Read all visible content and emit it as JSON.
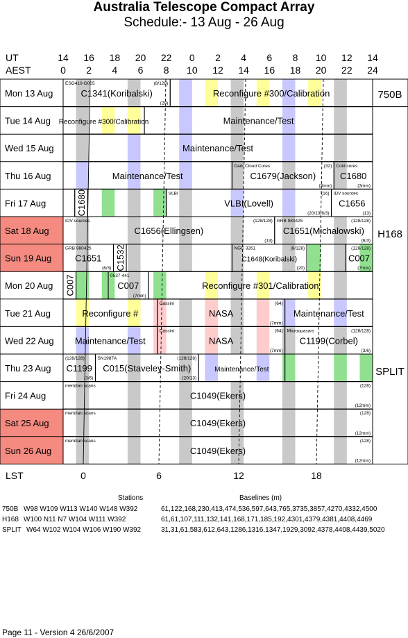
{
  "title": "Australia Telescope Compact Array",
  "subtitle": "Schedule:- 13 Aug - 26 Aug",
  "header": {
    "ut_label": "UT",
    "aest_label": "AEST",
    "ut_hours": [
      "14",
      "16",
      "18",
      "20",
      "22",
      "0",
      "2",
      "4",
      "6",
      "8",
      "10",
      "12",
      "14"
    ],
    "aest_hours": [
      "0",
      "2",
      "4",
      "6",
      "8",
      "10",
      "12",
      "14",
      "16",
      "18",
      "20",
      "22",
      "24"
    ]
  },
  "lst": {
    "label": "LST",
    "ticks": [
      "0",
      "6",
      "12",
      "18"
    ]
  },
  "colors": {
    "weekend_red": "#f48a80",
    "grey": "#c9c9c9",
    "blue": "#c8c8ff",
    "yellow": "#ffff99",
    "green": "#90e090",
    "pink": "#ffcccc"
  },
  "days": [
    {
      "label": "Mon  13 Aug",
      "weekend": false
    },
    {
      "label": "Tue  14 Aug",
      "weekend": false
    },
    {
      "label": "Wed  15 Aug",
      "weekend": false
    },
    {
      "label": "Thu  16 Aug",
      "weekend": false
    },
    {
      "label": "Fri  17 Aug",
      "weekend": false
    },
    {
      "label": "Sat  18 Aug",
      "weekend": true
    },
    {
      "label": "Sun  19 Aug",
      "weekend": true
    },
    {
      "label": "Mon  20 Aug",
      "weekend": false
    },
    {
      "label": "Tue  21 Aug",
      "weekend": false
    },
    {
      "label": "Wed  22 Aug",
      "weekend": false
    },
    {
      "label": "Thu  23 Aug",
      "weekend": false
    },
    {
      "label": "Fri  24 Aug",
      "weekend": false
    },
    {
      "label": "Sat  25 Aug",
      "weekend": true
    },
    {
      "label": "Sun  26 Aug",
      "weekend": true
    }
  ],
  "configs": [
    {
      "label": "750B",
      "row": 0
    },
    {
      "label": "H168",
      "row": 5
    },
    {
      "label": "SPLIT",
      "row": 10
    }
  ],
  "blocks": [
    {
      "row": 0,
      "start": 0,
      "end": 8.3,
      "main": "C1341(Koribalski)",
      "tl": "ESO410-G005",
      "tr": "(8/128)",
      "br": "(20)"
    },
    {
      "row": 0,
      "start": 8.3,
      "end": 24,
      "main": "Reconfigure #300/Calibration",
      "tl": "",
      "tr": "",
      "br": ""
    },
    {
      "row": 1,
      "start": 0,
      "end": 6.3,
      "main": "Reconfigure #300/Calibration",
      "tl": "",
      "tr": "",
      "br": "",
      "small": true
    },
    {
      "row": 1,
      "start": 6.3,
      "end": 24,
      "main": "Maintenance/Test",
      "tl": "",
      "tr": "",
      "br": ""
    },
    {
      "row": 2,
      "start": 0,
      "end": 24,
      "main": "Maintenance/Test",
      "tl": "",
      "tr": "",
      "br": ""
    },
    {
      "row": 3,
      "start": 0,
      "end": 13.1,
      "main": "Maintenance/Test",
      "tl": "",
      "tr": "",
      "br": ""
    },
    {
      "row": 3,
      "start": 13.1,
      "end": 21.0,
      "main": "C1679(Jackson)",
      "tl": "Dark Cloud Cores",
      "tr": "(32)",
      "br": "(3mm)"
    },
    {
      "row": 3,
      "start": 21.0,
      "end": 24,
      "main": "C1680",
      "tl": "Cold cores",
      "tr": "",
      "br": "(3mm)"
    },
    {
      "row": 4,
      "start": 0,
      "end": 0.9,
      "main": "",
      "tl": "",
      "tr": "",
      "br": ""
    },
    {
      "row": 4,
      "start": 0.9,
      "end": 1.9,
      "main": "C1680",
      "tl": "",
      "tr": "",
      "br": "",
      "vertical": true
    },
    {
      "row": 4,
      "start": 1.9,
      "end": 8.0,
      "main": "",
      "tl": "",
      "tr": "",
      "br": ""
    },
    {
      "row": 4,
      "start": 8.0,
      "end": 20.8,
      "main": "VLBI(Lovell)",
      "tl": "VLBI",
      "tr": "(16)",
      "br": "(20/13/6/3)"
    },
    {
      "row": 4,
      "start": 20.8,
      "end": 24,
      "main": "C1656",
      "tl": "IDV sources",
      "tr": "",
      "br": "(13)"
    },
    {
      "row": 5,
      "start": 0,
      "end": 16.4,
      "main": "C1656(Ellingsen)",
      "tl": "IDV sources",
      "tr": "(128/128)",
      "br": "(13)"
    },
    {
      "row": 5,
      "start": 16.4,
      "end": 24,
      "main": "C1651(Michalowski)",
      "tl": "GRB 980425",
      "tr": "(128/128)",
      "br": "(6/3)"
    },
    {
      "row": 6,
      "start": 0,
      "end": 3.9,
      "main": "C1651",
      "tl": "GRB 980425",
      "tr": "",
      "br": "(6/3)"
    },
    {
      "row": 6,
      "start": 3.9,
      "end": 4.9,
      "main": "C1532",
      "tl": "",
      "tr": "",
      "br": "",
      "vertical": true
    },
    {
      "row": 6,
      "start": 4.9,
      "end": 13.1,
      "main": "",
      "tl": "",
      "tr": "",
      "br": ""
    },
    {
      "row": 6,
      "start": 13.1,
      "end": 18.9,
      "main": "C1648(Koribalski)",
      "tl": "NGC 3261",
      "tr": "(8/128)",
      "br": "(20)",
      "small": true
    },
    {
      "row": 6,
      "start": 18.9,
      "end": 21.9,
      "main": "",
      "tl": "",
      "tr": "",
      "br": ""
    },
    {
      "row": 6,
      "start": 21.9,
      "end": 24,
      "main": "C007",
      "tl": "",
      "tr": "(128/128)",
      "br": "(7mm)"
    },
    {
      "row": 7,
      "start": 0,
      "end": 1.0,
      "main": "C007",
      "tl": "",
      "tr": "",
      "br": "",
      "vertical": true
    },
    {
      "row": 7,
      "start": 1.0,
      "end": 3.5,
      "main": "",
      "tl": "",
      "tr": "",
      "br": ""
    },
    {
      "row": 7,
      "start": 3.5,
      "end": 6.6,
      "main": "C007",
      "tl": "0537-441",
      "tr": "",
      "br": "(7mm)"
    },
    {
      "row": 7,
      "start": 6.6,
      "end": 24,
      "main": "Reconfigure #301/Calibration",
      "tl": "",
      "tr": "",
      "br": ""
    },
    {
      "row": 8,
      "start": 0,
      "end": 7.3,
      "main": "Reconfigure #",
      "tl": "",
      "tr": "",
      "br": ""
    },
    {
      "row": 8,
      "start": 7.3,
      "end": 17.2,
      "main": "NASA",
      "tl": "Cassini",
      "tr": "(64)",
      "br": "(7mm)"
    },
    {
      "row": 8,
      "start": 17.2,
      "end": 24,
      "main": "Maintenance/Test",
      "tl": "",
      "tr": "",
      "br": ""
    },
    {
      "row": 9,
      "start": 0,
      "end": 7.3,
      "main": "Maintenance/Test",
      "tl": "",
      "tr": "",
      "br": ""
    },
    {
      "row": 9,
      "start": 7.3,
      "end": 17.2,
      "main": "NASA",
      "tl": "Cassini",
      "tr": "(64)",
      "br": "(7mm)"
    },
    {
      "row": 9,
      "start": 17.2,
      "end": 24,
      "main": "C1199(Corbel)",
      "tl": "Microquasars",
      "tr": "(128/128)",
      "br": "(3/6)"
    },
    {
      "row": 10,
      "start": 0,
      "end": 2.5,
      "main": "C1199",
      "tl": "(128/128)",
      "tr": "",
      "br": "(3/6)"
    },
    {
      "row": 10,
      "start": 2.5,
      "end": 10.5,
      "main": "C015(Staveley-Smith)",
      "tl": "SN1987A",
      "tr": "(128/128)",
      "br": "(20/13)"
    },
    {
      "row": 10,
      "start": 10.5,
      "end": 17.2,
      "main": "Maintenance/Test",
      "tl": "",
      "tr": "",
      "br": "",
      "small": true
    },
    {
      "row": 10,
      "start": 17.2,
      "end": 24,
      "main": "",
      "tl": "",
      "tr": "",
      "br": ""
    },
    {
      "row": 11,
      "start": 0,
      "end": 24,
      "main": "C1049(Ekers)",
      "tl": "meridian scans",
      "tr": "(128)",
      "br": "(12mm)"
    },
    {
      "row": 12,
      "start": 0,
      "end": 24,
      "main": "C1049(Ekers)",
      "tl": "meridian scans",
      "tr": "(128)",
      "br": "(12mm)"
    },
    {
      "row": 13,
      "start": 0,
      "end": 24,
      "main": "C1049(Ekers)",
      "tl": "meridian scans",
      "tr": "(128)",
      "br": "(12mm)"
    }
  ],
  "stations": {
    "stations_header": "Stations",
    "baselines_header": "Baselines (m)",
    "rows": [
      {
        "config": "750B",
        "stations": "W98 W109 W113 W140 W148 W392",
        "baselines": "61,122,168,230,413,474,536,597,643,765,3735,3857,4270,4332,4500"
      },
      {
        "config": "H168",
        "stations": "W100 N11 N7 W104 W111 W392",
        "baselines": "61,61,107,111,132,141,168,171,185,192,4301,4379,4381,4408,4469"
      },
      {
        "config": "SPLIT",
        "stations": "W64 W102 W104 W106 W190 W392",
        "baselines": "31,31,61,583,612,643,1286,1316,1347,1929,3092,4378,4408,4439,5020"
      }
    ]
  },
  "footer": "Page 11 - Version 4  26/6/2007"
}
